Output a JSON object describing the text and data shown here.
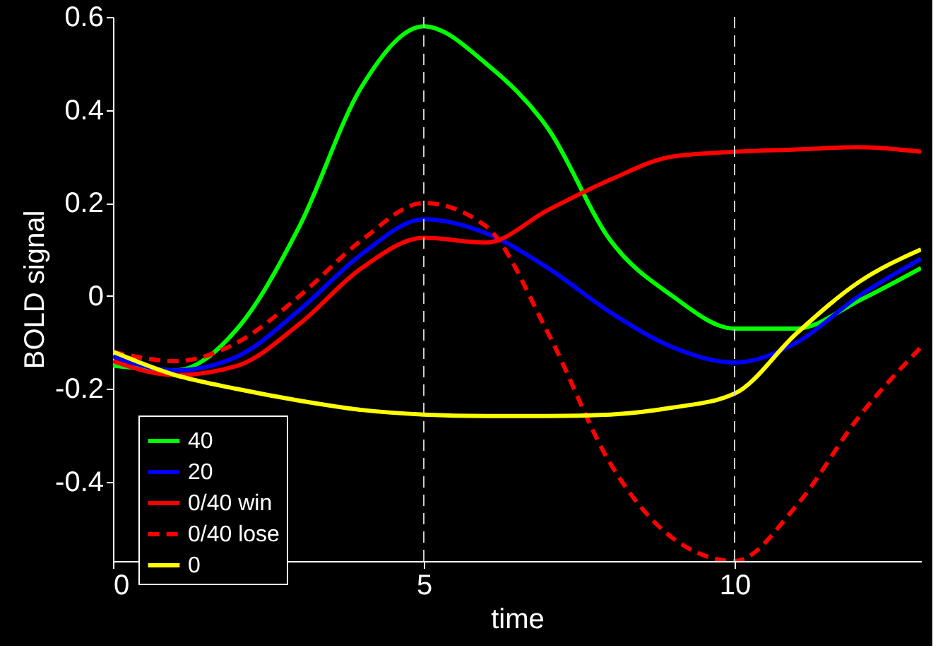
{
  "chart_data": {
    "type": "line",
    "xlabel": "time",
    "ylabel": "BOLD signal",
    "x": [
      0,
      1,
      2,
      3,
      4,
      5,
      6,
      7,
      8,
      9,
      10,
      11,
      12,
      13
    ],
    "xlim": [
      0,
      13
    ],
    "xticks": [
      0,
      5,
      10
    ],
    "ylim": [
      -0.57,
      0.6
    ],
    "yticks": [
      -0.4,
      -0.2,
      {
        "value": 0,
        "label": "0"
      },
      0.2,
      0.4,
      0.6
    ],
    "series": [
      {
        "name": "40",
        "color": "#00ff00",
        "line_style": "solid",
        "values": [
          -0.15,
          -0.16,
          -0.07,
          0.15,
          0.45,
          0.58,
          0.5,
          0.36,
          0.12,
          0.0,
          -0.07,
          -0.07,
          -0.01,
          0.06
        ]
      },
      {
        "name": "20",
        "color": "#0000ff",
        "line_style": "solid",
        "values": [
          -0.13,
          -0.16,
          -0.13,
          -0.03,
          0.09,
          0.165,
          0.135,
          0.06,
          -0.035,
          -0.11,
          -0.143,
          -0.1,
          0.0,
          0.08
        ]
      },
      {
        "name": "0/40 win",
        "color": "#ff0000",
        "line_style": "solid",
        "values": [
          -0.14,
          -0.17,
          -0.15,
          -0.06,
          0.06,
          0.125,
          0.115,
          0.185,
          0.25,
          0.3,
          0.31,
          0.315,
          0.32,
          0.31
        ]
      },
      {
        "name": "0/40 lose",
        "color": "#ff0000",
        "line_style": "dashed",
        "values": [
          -0.12,
          -0.14,
          -0.1,
          0.0,
          0.12,
          0.2,
          0.15,
          -0.08,
          -0.36,
          -0.52,
          -0.57,
          -0.45,
          -0.26,
          -0.11
        ]
      },
      {
        "name": "0",
        "color": "#ffff00",
        "line_style": "solid",
        "values": [
          -0.12,
          -0.17,
          -0.2,
          -0.225,
          -0.245,
          -0.255,
          -0.258,
          -0.258,
          -0.255,
          -0.24,
          -0.21,
          -0.08,
          0.03,
          0.1
        ]
      }
    ],
    "ref_lines": [
      {
        "axis": "x",
        "value": 5,
        "color": "#cccccc",
        "line_style": "dashed"
      },
      {
        "axis": "x",
        "value": 10,
        "color": "#cccccc",
        "line_style": "dashed"
      }
    ],
    "legend": "bottom left",
    "grid": false
  }
}
